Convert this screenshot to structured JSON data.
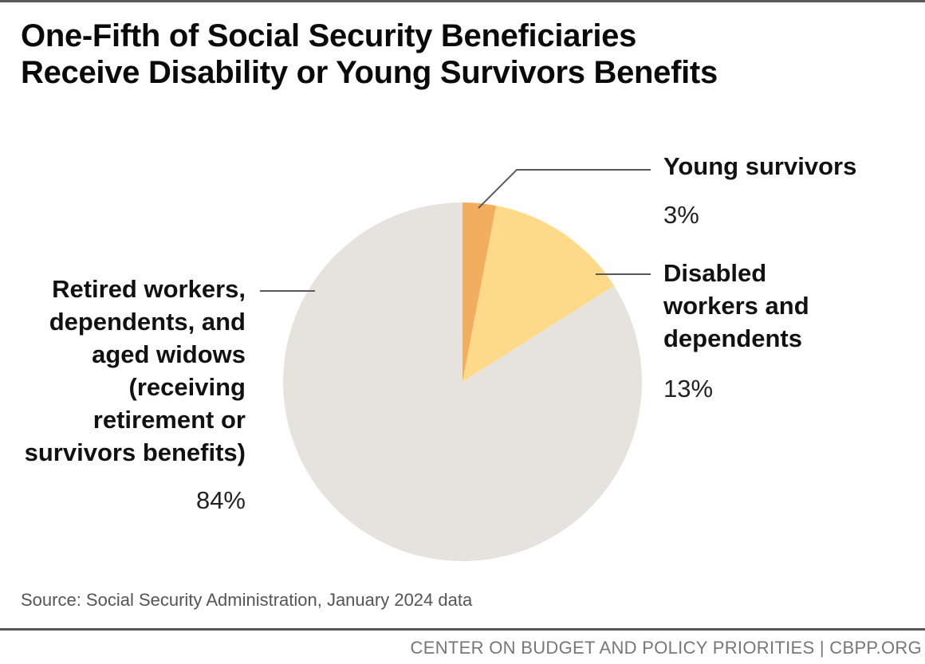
{
  "title_lines": [
    "One-Fifth of Social Security Beneficiaries",
    "Receive Disability or Young Survivors Benefits"
  ],
  "chart_data": {
    "type": "pie",
    "title": "One-Fifth of Social Security Beneficiaries Receive Disability or Young Survivors Benefits",
    "start": "12 o'clock, clockwise",
    "slices": [
      {
        "name": "Young survivors",
        "value": 3,
        "label": "3%",
        "color": "#f0ae5e"
      },
      {
        "name": "Disabled workers and dependents",
        "value": 13,
        "label": "13%",
        "color": "#fdda8a"
      },
      {
        "name": "Retired workers, dependents, and aged widows (receiving retirement or survivors benefits)",
        "value": 84,
        "label": "84%",
        "color": "#e6e2de"
      }
    ]
  },
  "labels": {
    "young": {
      "lines": [
        "Young survivors"
      ],
      "pct": "3%"
    },
    "disabled": {
      "lines": [
        "Disabled",
        "workers and",
        "dependents"
      ],
      "pct": "13%"
    },
    "retired": {
      "lines": [
        "Retired workers,",
        "dependents, and",
        "aged widows",
        "(receiving",
        "retirement or",
        "survivors benefits)"
      ],
      "pct": "84%"
    }
  },
  "source": "Source: Social Security Administration, January 2024 data",
  "footer": "CENTER ON BUDGET AND POLICY PRIORITIES | CBPP.ORG"
}
